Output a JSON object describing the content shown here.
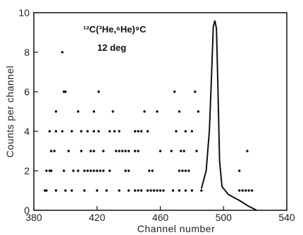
{
  "chart_data": {
    "type": "scatter",
    "title": "",
    "xlabel": "Channel number",
    "ylabel": "Counts per channel",
    "xlim": [
      380,
      540
    ],
    "ylim": [
      0,
      10
    ],
    "xticks": [
      380,
      420,
      460,
      500,
      540
    ],
    "xtick_labels": [
      "380",
      "420",
      "460",
      "500",
      "540"
    ],
    "yticks": [
      0,
      2,
      4,
      6,
      8,
      10
    ],
    "ytick_labels": [
      "0",
      "2",
      "4",
      "6",
      "8",
      "10"
    ],
    "grid": false,
    "annotations": [
      "¹²C(³He,⁶He)⁹C",
      "12 deg"
    ],
    "series": [
      {
        "points": [
          [
            387,
            1
          ],
          [
            388,
            1
          ],
          [
            388,
            2
          ],
          [
            390,
            2
          ],
          [
            391,
            2
          ],
          [
            399,
            2
          ],
          [
            405,
            2
          ],
          [
            408,
            2
          ],
          [
            412,
            2
          ],
          [
            414,
            2
          ],
          [
            416,
            2
          ],
          [
            418,
            2
          ],
          [
            420,
            2
          ],
          [
            422,
            2
          ],
          [
            424,
            2
          ],
          [
            428,
            2
          ],
          [
            438,
            2
          ],
          [
            440,
            2
          ],
          [
            453,
            2
          ],
          [
            455,
            2
          ],
          [
            472,
            2
          ],
          [
            474,
            2
          ],
          [
            476,
            2
          ],
          [
            478,
            2
          ],
          [
            510,
            2
          ],
          [
            391,
            3
          ],
          [
            393,
            3
          ],
          [
            402,
            3
          ],
          [
            410,
            3
          ],
          [
            416,
            3
          ],
          [
            418,
            3
          ],
          [
            424,
            3
          ],
          [
            432,
            3
          ],
          [
            434,
            3
          ],
          [
            436,
            3
          ],
          [
            438,
            3
          ],
          [
            440,
            3
          ],
          [
            444,
            3
          ],
          [
            446,
            3
          ],
          [
            460,
            3
          ],
          [
            467,
            3
          ],
          [
            473,
            3
          ],
          [
            475,
            3
          ],
          [
            483,
            3
          ],
          [
            515,
            3
          ],
          [
            390,
            4
          ],
          [
            394,
            4
          ],
          [
            398,
            4
          ],
          [
            404,
            4
          ],
          [
            410,
            4
          ],
          [
            414,
            4
          ],
          [
            418,
            4
          ],
          [
            421,
            4
          ],
          [
            428,
            4
          ],
          [
            431,
            4
          ],
          [
            434,
            4
          ],
          [
            444,
            4
          ],
          [
            446,
            4
          ],
          [
            448,
            4
          ],
          [
            452,
            4
          ],
          [
            470,
            4
          ],
          [
            476,
            4
          ],
          [
            480,
            4
          ],
          [
            394,
            5
          ],
          [
            408,
            5
          ],
          [
            418,
            5
          ],
          [
            430,
            5
          ],
          [
            450,
            5
          ],
          [
            458,
            5
          ],
          [
            472,
            5
          ],
          [
            484,
            5
          ],
          [
            399,
            6
          ],
          [
            400,
            6
          ],
          [
            421,
            6
          ],
          [
            469,
            6
          ],
          [
            482,
            6
          ],
          [
            398,
            8
          ],
          [
            394,
            1
          ],
          [
            400,
            1
          ],
          [
            404,
            1
          ],
          [
            412,
            1
          ],
          [
            420,
            1
          ],
          [
            426,
            1
          ],
          [
            434,
            1
          ],
          [
            440,
            1
          ],
          [
            444,
            1
          ],
          [
            446,
            1
          ],
          [
            448,
            1
          ],
          [
            452,
            1
          ],
          [
            454,
            1
          ],
          [
            456,
            1
          ],
          [
            458,
            1
          ],
          [
            460,
            1
          ],
          [
            462,
            1
          ],
          [
            468,
            1
          ],
          [
            472,
            1
          ],
          [
            476,
            1
          ],
          [
            480,
            1
          ],
          [
            486,
            1
          ],
          [
            510,
            1
          ],
          [
            512,
            1
          ],
          [
            514,
            1
          ],
          [
            516,
            1
          ],
          [
            518,
            1
          ]
        ]
      }
    ],
    "fit_curve": [
      [
        486,
        1.1
      ],
      [
        489,
        2.0
      ],
      [
        491,
        4.0
      ],
      [
        492.5,
        7.0
      ],
      [
        493.5,
        9.3
      ],
      [
        494.5,
        9.6
      ],
      [
        495.5,
        9.2
      ],
      [
        496.5,
        6.0
      ],
      [
        497.5,
        2.5
      ],
      [
        499,
        1.2
      ],
      [
        503,
        0.8
      ],
      [
        510,
        0.5
      ],
      [
        516,
        0.2
      ],
      [
        521,
        0
      ]
    ]
  }
}
